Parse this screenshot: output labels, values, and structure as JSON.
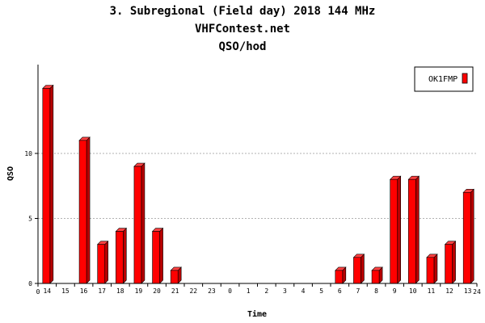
{
  "chart_data": {
    "type": "bar",
    "title_lines": [
      "3. Subregional (Field day) 2018 144 MHz",
      "VHFContest.net",
      "QSO/hod"
    ],
    "xlabel": "Time",
    "ylabel": "QSO",
    "categories": [
      "14",
      "15",
      "16",
      "17",
      "18",
      "19",
      "20",
      "21",
      "22",
      "23",
      "0",
      "1",
      "2",
      "3",
      "4",
      "5",
      "6",
      "7",
      "8",
      "9",
      "10",
      "11",
      "12",
      "13"
    ],
    "series": [
      {
        "name": "OK1FMP",
        "color": "#ff0000",
        "values": [
          15,
          0,
          11,
          3,
          4,
          9,
          4,
          1,
          0,
          0,
          0,
          0,
          0,
          0,
          0,
          0,
          1,
          2,
          1,
          8,
          8,
          2,
          3,
          7
        ]
      }
    ],
    "yticks": [
      0,
      5,
      10
    ],
    "ylim": [
      0,
      16
    ],
    "x_axis_start_label": "0",
    "x_axis_end_label": "24",
    "grid": "dashed horizontal",
    "legend": "top-right"
  }
}
